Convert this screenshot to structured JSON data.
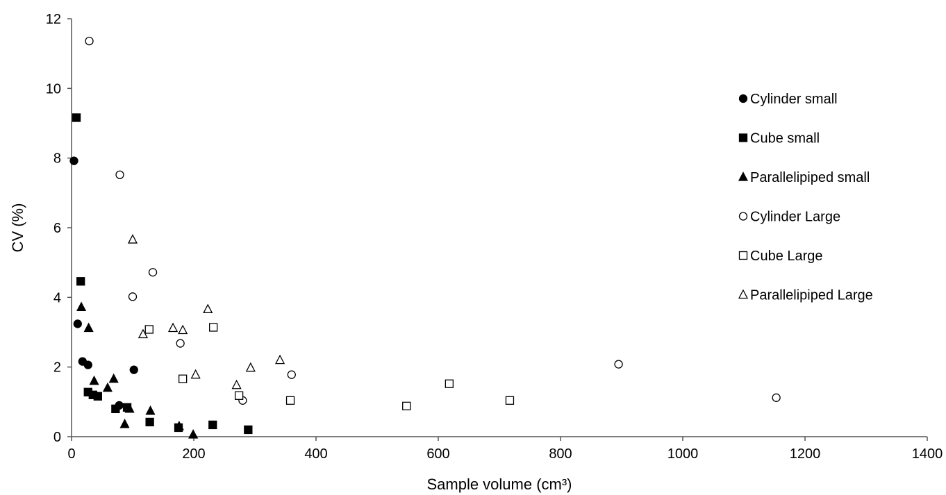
{
  "chart_data": {
    "type": "scatter",
    "title": "",
    "xlabel": "Sample volume (cm³)",
    "ylabel": "CV (%)",
    "xlim": [
      0,
      1400
    ],
    "ylim": [
      0,
      12
    ],
    "x_ticks": [
      "0",
      "200",
      "400",
      "600",
      "800",
      "1000",
      "1200",
      "1400"
    ],
    "y_ticks": [
      "0",
      "2",
      "4",
      "6",
      "8",
      "10",
      "12"
    ],
    "grid": false,
    "legend_position": "right",
    "series": [
      {
        "name": "Cylinder small",
        "marker": "circle",
        "filled": true,
        "color": "#000000",
        "points": [
          [
            4,
            7.92
          ],
          [
            10,
            3.24
          ],
          [
            18,
            2.16
          ],
          [
            27,
            2.06
          ],
          [
            78,
            0.9
          ],
          [
            102,
            1.92
          ]
        ]
      },
      {
        "name": "Cube small",
        "marker": "square",
        "filled": true,
        "color": "#000000",
        "points": [
          [
            8,
            9.16
          ],
          [
            15,
            4.46
          ],
          [
            27,
            1.28
          ],
          [
            35,
            1.2
          ],
          [
            43,
            1.16
          ],
          [
            72,
            0.8
          ],
          [
            91,
            0.84
          ],
          [
            128,
            0.42
          ],
          [
            175,
            0.26
          ],
          [
            231,
            0.34
          ],
          [
            289,
            0.2
          ]
        ]
      },
      {
        "name": "Parallelipiped small",
        "marker": "triangle",
        "filled": true,
        "color": "#000000",
        "points": [
          [
            16,
            3.72
          ],
          [
            28,
            3.12
          ],
          [
            37,
            1.6
          ],
          [
            59,
            1.4
          ],
          [
            69,
            1.66
          ],
          [
            87,
            0.36
          ],
          [
            95,
            0.8
          ],
          [
            129,
            0.74
          ],
          [
            176,
            0.3
          ],
          [
            199,
            0.06
          ]
        ]
      },
      {
        "name": "Cylinder Large",
        "marker": "circle",
        "filled": false,
        "color": "#000000",
        "points": [
          [
            29,
            11.36
          ],
          [
            79,
            7.52
          ],
          [
            100,
            4.02
          ],
          [
            133,
            4.72
          ],
          [
            178,
            2.68
          ],
          [
            280,
            1.04
          ],
          [
            360,
            1.78
          ],
          [
            895,
            2.08
          ],
          [
            1153,
            1.12
          ]
        ]
      },
      {
        "name": "Cube Large",
        "marker": "square",
        "filled": false,
        "color": "#000000",
        "points": [
          [
            127,
            3.08
          ],
          [
            182,
            1.66
          ],
          [
            232,
            3.14
          ],
          [
            274,
            1.18
          ],
          [
            358,
            1.04
          ],
          [
            548,
            0.88
          ],
          [
            618,
            1.52
          ],
          [
            717,
            1.04
          ]
        ]
      },
      {
        "name": "Parallelipiped Large",
        "marker": "triangle",
        "filled": false,
        "color": "#000000",
        "points": [
          [
            100,
            5.66
          ],
          [
            117,
            2.94
          ],
          [
            166,
            3.12
          ],
          [
            182,
            3.06
          ],
          [
            203,
            1.78
          ],
          [
            223,
            3.66
          ],
          [
            270,
            1.48
          ],
          [
            293,
            1.98
          ],
          [
            341,
            2.2
          ]
        ]
      }
    ]
  }
}
